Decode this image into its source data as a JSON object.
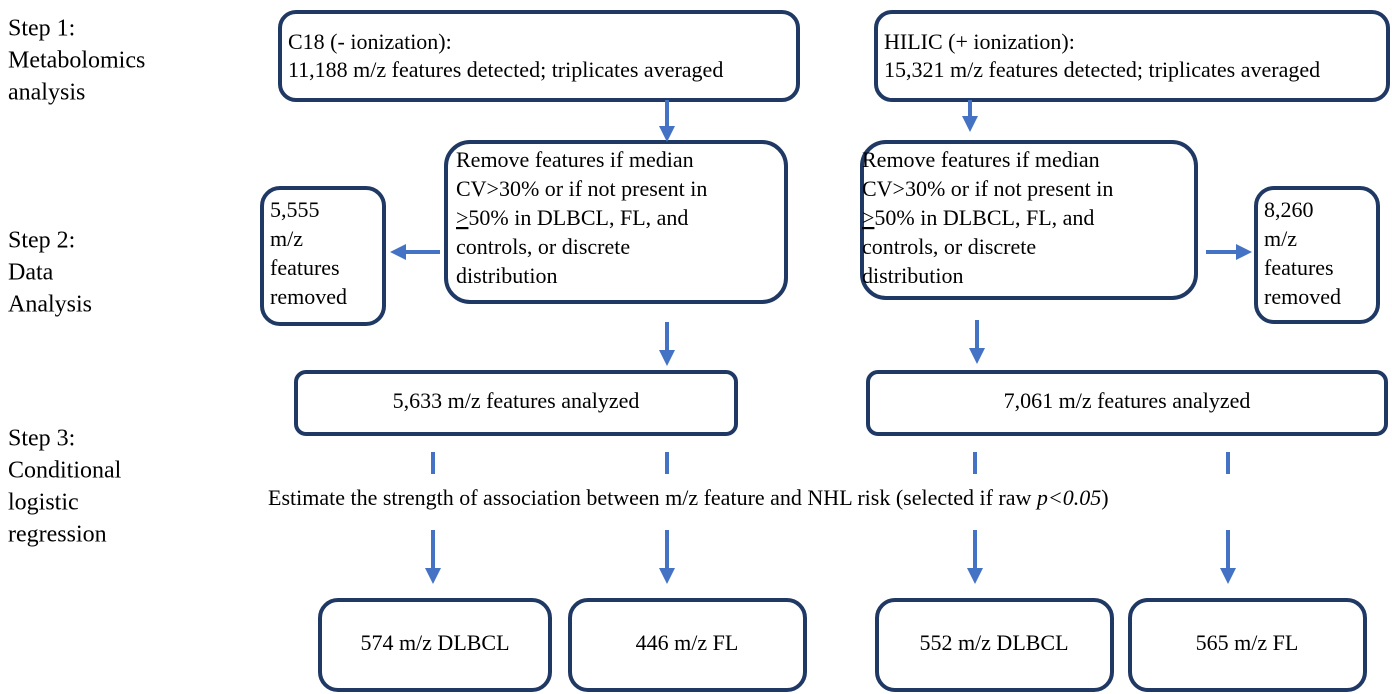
{
  "steps": [
    {
      "lines": [
        "Step 1:",
        "Metabolomics",
        "analysis"
      ]
    },
    {
      "lines": [
        "Step 2:",
        "Data",
        "Analysis"
      ]
    },
    {
      "lines": [
        "Step 3:",
        "Conditional",
        "logistic",
        "regression"
      ]
    }
  ],
  "nodes": {
    "c18": {
      "lines": [
        "C18 (- ionization):",
        "11,188 m/z features detected; triplicates averaged"
      ]
    },
    "hilic": {
      "lines": [
        "HILIC (+ ionization):",
        "15,321 m/z features detected; triplicates averaged"
      ]
    },
    "filter_left": {
      "lines": [
        "Remove features if median",
        "CV>30% or if not present in",
        "50% in DLBCL, FL, and",
        "controls, or discrete",
        "distribution"
      ],
      "underlined": ">"
    },
    "filter_right": {
      "lines": [
        "Remove features if median",
        "CV>30% or if not present in",
        "50% in DLBCL, FL, and",
        "controls, or discrete",
        "distribution"
      ],
      "underlined": ">"
    },
    "removed_left": {
      "lines": [
        "5,555",
        "m/z",
        "features",
        "removed"
      ]
    },
    "removed_right": {
      "lines": [
        "8,260",
        "m/z",
        "features",
        "removed"
      ]
    },
    "analyzed_left": {
      "label": "5,633 m/z features analyzed"
    },
    "analyzed_right": {
      "label": "7,061 m/z features analyzed"
    },
    "estimate": {
      "text": "Estimate the strength of association between m/z feature and NHL risk (selected if raw ",
      "italic": "p<0.05",
      "end": ")"
    },
    "out1": {
      "label": "574 m/z DLBCL"
    },
    "out2": {
      "label": "446 m/z FL"
    },
    "out3": {
      "label": "552 m/z DLBCL"
    },
    "out4": {
      "label": "565 m/z FL"
    }
  }
}
